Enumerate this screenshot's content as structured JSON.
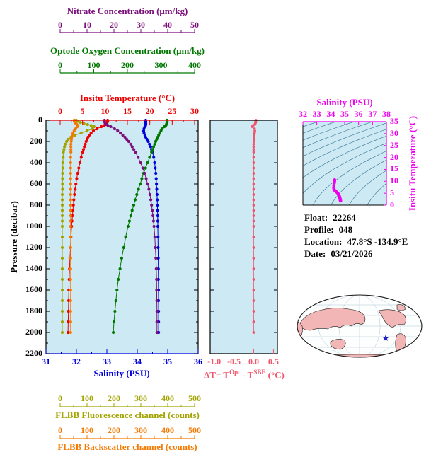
{
  "style": {
    "panel_bg": "#CDE9F3",
    "contour_color": "#2E6E8E"
  },
  "info": {
    "rows": [
      {
        "label": "Float:",
        "value": "22264"
      },
      {
        "label": "Profile:",
        "value": "048"
      },
      {
        "label": "Location:",
        "value": "47.8°S -134.9°E"
      },
      {
        "label": "Date:",
        "value": "03/21/2026"
      }
    ]
  },
  "map": {
    "land_color": "#F2B6B6",
    "ocean_color": "#FDFEFE",
    "outline_color": "#1A1A1A",
    "graticule_color": "#A9C6D2",
    "star_color": "#2020CC"
  },
  "chart_data": [
    {
      "id": "profile-plot",
      "type": "line",
      "y_axis": {
        "label": "Pressure (decibar)",
        "color": "#000000",
        "range": [
          0,
          2200
        ],
        "ticks": [
          "0",
          "200",
          "400",
          "600",
          "800",
          "1000",
          "1200",
          "1400",
          "1600",
          "1800",
          "2000",
          "2200"
        ]
      },
      "x_axes": {
        "nitrate": {
          "label": "Nitrate Concentration (μm/kg)",
          "color": "#7B0F7B",
          "range": [
            0,
            50
          ],
          "ticks": [
            "0",
            "10",
            "20",
            "30",
            "40",
            "50"
          ]
        },
        "oxygen": {
          "label": "Optode Oxygen Concentration (μm/kg)",
          "color": "#007800",
          "range": [
            0,
            400
          ],
          "ticks": [
            "0",
            "100",
            "200",
            "300",
            "400"
          ]
        },
        "temperature": {
          "label": "Insitu Temperature (°C)",
          "color": "#EE0000",
          "range": [
            0,
            30
          ],
          "ticks": [
            "0",
            "5",
            "10",
            "15",
            "20",
            "25",
            "30"
          ]
        },
        "salinity": {
          "label": "Salinity (PSU)",
          "color": "#0000DD",
          "range": [
            31,
            36
          ],
          "ticks": [
            "31",
            "32",
            "33",
            "34",
            "35",
            "36"
          ]
        },
        "fluorescence": {
          "label": "FLBB Fluorescence channel (counts)",
          "color": "#A3A300",
          "range": [
            0,
            500
          ],
          "ticks": [
            "0",
            "100",
            "200",
            "300",
            "400",
            "500"
          ]
        },
        "backscatter": {
          "label": "FLBB Backscatter channel (counts)",
          "color": "#F57900",
          "range": [
            0,
            500
          ],
          "ticks": [
            "0",
            "100",
            "200",
            "300",
            "400",
            "500"
          ]
        }
      },
      "pressures": [
        0,
        10,
        20,
        30,
        40,
        50,
        60,
        80,
        100,
        120,
        140,
        160,
        180,
        200,
        225,
        250,
        275,
        300,
        350,
        400,
        450,
        500,
        550,
        600,
        650,
        700,
        750,
        800,
        850,
        900,
        950,
        1000,
        1100,
        1200,
        1300,
        1400,
        1500,
        1600,
        1700,
        1800,
        1900,
        2000
      ],
      "series": [
        {
          "name": "Temperature",
          "axis": "temperature",
          "color": "#EE0000",
          "values": [
            10.6,
            10.6,
            10.5,
            10.4,
            10.2,
            9.8,
            9.2,
            8.2,
            7.4,
            6.9,
            6.5,
            6.2,
            6.0,
            5.8,
            5.6,
            5.4,
            5.2,
            5.0,
            4.7,
            4.4,
            4.15,
            3.9,
            3.7,
            3.5,
            3.35,
            3.2,
            3.05,
            2.95,
            2.85,
            2.75,
            2.65,
            2.55,
            2.4,
            2.3,
            2.2,
            2.1,
            2.0,
            1.95,
            1.9,
            1.85,
            1.8,
            1.75
          ]
        },
        {
          "name": "Salinity",
          "axis": "salinity",
          "color": "#0000DD",
          "values": [
            34.28,
            34.28,
            34.28,
            34.28,
            34.28,
            34.27,
            34.25,
            34.22,
            34.21,
            34.22,
            34.25,
            34.28,
            34.32,
            34.36,
            34.4,
            34.44,
            34.47,
            34.5,
            34.54,
            34.57,
            34.59,
            34.61,
            34.62,
            34.63,
            34.64,
            34.65,
            34.655,
            34.66,
            34.665,
            34.67,
            34.672,
            34.675,
            34.68,
            34.684,
            34.688,
            34.691,
            34.694,
            34.696,
            34.698,
            34.699,
            34.7,
            34.7
          ]
        },
        {
          "name": "Optode Oxygen",
          "axis": "oxygen",
          "color": "#007800",
          "values": [
            318,
            318,
            318,
            317,
            316,
            314,
            310,
            304,
            300,
            296,
            293,
            290,
            287,
            284,
            281,
            278,
            275,
            272,
            266,
            260,
            254,
            248,
            243,
            238,
            233,
            228,
            223,
            219,
            214,
            210,
            206,
            202,
            195,
            189,
            183,
            178,
            173,
            169,
            166,
            163,
            160,
            158
          ]
        },
        {
          "name": "Nitrate",
          "axis": "nitrate",
          "color": "#7B0F7B",
          "values": [
            16.5,
            16.5,
            16.6,
            16.8,
            17.2,
            17.8,
            18.8,
            20.2,
            21.4,
            22.4,
            23.3,
            24.1,
            24.8,
            25.5,
            26.2,
            26.8,
            27.4,
            28.0,
            29.0,
            29.9,
            30.7,
            31.4,
            32.0,
            32.5,
            33.0,
            33.4,
            33.7,
            34.0,
            34.25,
            34.5,
            34.7,
            34.9,
            35.2,
            35.4,
            35.6,
            35.75,
            35.85,
            35.9,
            35.95,
            36.0,
            36.0,
            36.0
          ]
        },
        {
          "name": "FLBB Fluorescence",
          "axis": "fluorescence",
          "color": "#A3A300",
          "values": [
            60,
            65,
            75,
            88,
            102,
            115,
            126,
            120,
            100,
            78,
            55,
            40,
            30,
            24,
            19,
            16,
            14,
            12,
            11,
            10,
            10,
            9,
            9,
            9,
            9,
            8,
            8,
            8,
            8,
            8,
            8,
            8,
            8,
            8,
            8,
            8,
            8,
            8,
            8,
            8,
            8,
            8
          ]
        },
        {
          "name": "FLBB Backscatter",
          "axis": "backscatter",
          "color": "#F57900",
          "values": [
            52,
            53,
            55,
            58,
            62,
            66,
            64,
            58,
            52,
            48,
            45,
            43,
            42,
            41,
            40,
            40,
            40,
            40,
            39,
            39,
            39,
            39,
            39,
            39,
            39,
            39,
            39,
            39,
            39,
            39,
            39,
            39,
            39,
            39,
            39,
            39,
            39,
            39,
            39,
            39,
            39,
            39
          ]
        }
      ]
    },
    {
      "id": "delta-t-plot",
      "type": "scatter",
      "x_axis": {
        "label_parts": {
          "pre": "ΔT= T",
          "sup1": "Opt",
          "mid": " - T",
          "sup2": "SBE",
          "post": " (°C)"
        },
        "color": "#F2556B",
        "range": [
          -1.1,
          0.6
        ],
        "ticks": [
          "-1.0",
          "-0.5",
          "0.0",
          "0.5"
        ]
      },
      "values": [
        0.06,
        0.05,
        0.05,
        0.04,
        0.03,
        -0.02,
        -0.04,
        0.02,
        0.03,
        0.02,
        0.01,
        0.01,
        0.01,
        0.01,
        0.0,
        0.0,
        0.0,
        0.0,
        0.0,
        0.0,
        0.0,
        0.0,
        0.0,
        0.0,
        0.0,
        0.0,
        0.0,
        0.0,
        0.0,
        0.0,
        0.0,
        0.0,
        0.0,
        0.0,
        0.0,
        0.0,
        0.0,
        0.0,
        0.0,
        0.0,
        0.0,
        0.0
      ]
    },
    {
      "id": "ts-diagram",
      "type": "scatter",
      "x_axis": {
        "label": "Salinity (PSU)",
        "color": "#EE00EE",
        "range": [
          32,
          38
        ],
        "ticks": [
          "32",
          "33",
          "34",
          "35",
          "36",
          "37",
          "38"
        ]
      },
      "y_axis": {
        "label": "Insitu Temperature (°C)",
        "color": "#EE00EE",
        "range": [
          0,
          35
        ],
        "ticks": [
          "0",
          "5",
          "10",
          "15",
          "20",
          "25",
          "30",
          "35"
        ]
      },
      "point_color": "#EE00EE",
      "contour_levels": [
        17,
        18,
        19,
        20,
        21,
        22,
        23,
        24,
        25,
        26,
        27,
        28,
        29,
        30
      ],
      "points_note": "T-S pairs derived from profile-plot salinity and temperature series"
    }
  ]
}
